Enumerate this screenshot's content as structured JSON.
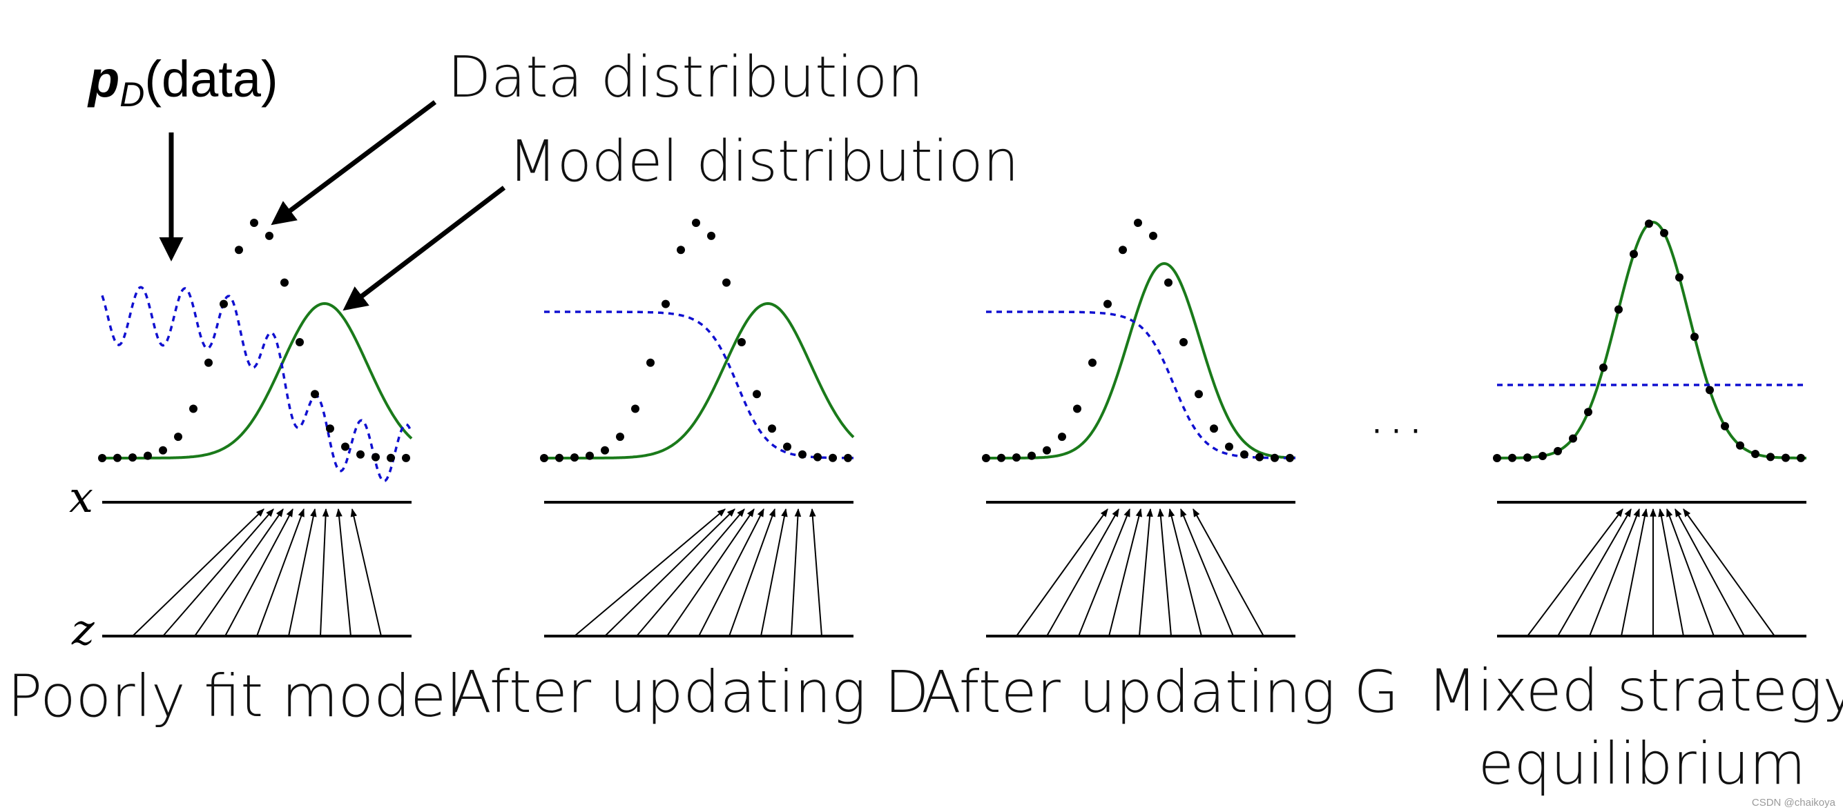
{
  "figure": {
    "pd_label": {
      "p": "p",
      "sub": "D",
      "rest": "(data)"
    },
    "annotations": {
      "data_distribution": "Data distribution",
      "model_distribution": "Model distribution"
    },
    "axis_labels": {
      "x": "x",
      "z": "z"
    },
    "ellipsis": "· · ·",
    "watermark": "CSDN @chaikoya",
    "colors": {
      "data": "#000000",
      "model": "#1a7a1a",
      "discriminator": "#1010d0"
    },
    "panels": [
      {
        "caption": [
          "Poorly fit model"
        ]
      },
      {
        "caption": [
          "After updating D"
        ]
      },
      {
        "caption": [
          "After updating G"
        ]
      },
      {
        "caption": [
          "Mixed strategy",
          "equilibrium"
        ]
      }
    ]
  }
}
